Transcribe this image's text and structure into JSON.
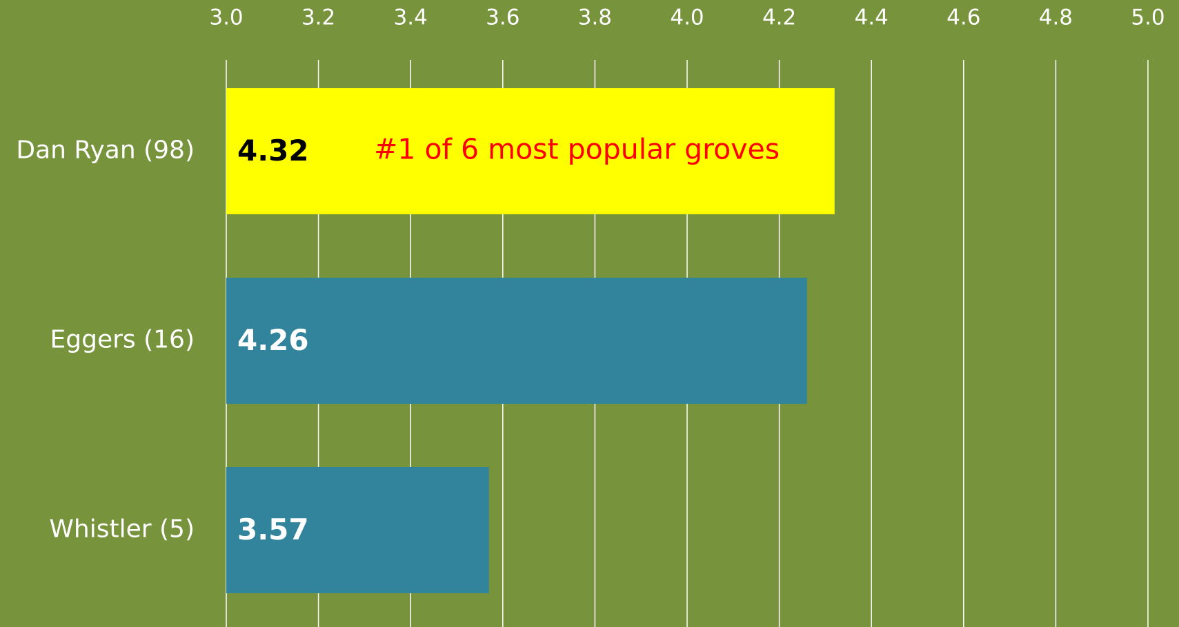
{
  "chart_data": {
    "type": "barh",
    "categories": [
      "Dan Ryan (98)",
      "Eggers (16)",
      "Whistler (5)"
    ],
    "values": [
      4.32,
      4.26,
      3.57
    ],
    "colors": [
      "#ffff00",
      "#31849b",
      "#31849b"
    ],
    "label_colors": [
      "#000000",
      "#ffffff",
      "#ffffff"
    ],
    "xlim": [
      3.0,
      5.0
    ],
    "xticks": [
      {
        "value": 3,
        "label": "3.0"
      },
      3.2,
      3.4,
      3.6,
      3.8,
      {
        "value": 4,
        "label": "4.0"
      },
      4.2,
      4.4,
      4.6,
      4.8,
      {
        "value": 5,
        "label": "5.0"
      }
    ],
    "grid": true,
    "annotation": {
      "text": "#1 of 6 most popular groves",
      "color": "#ff0000"
    }
  }
}
